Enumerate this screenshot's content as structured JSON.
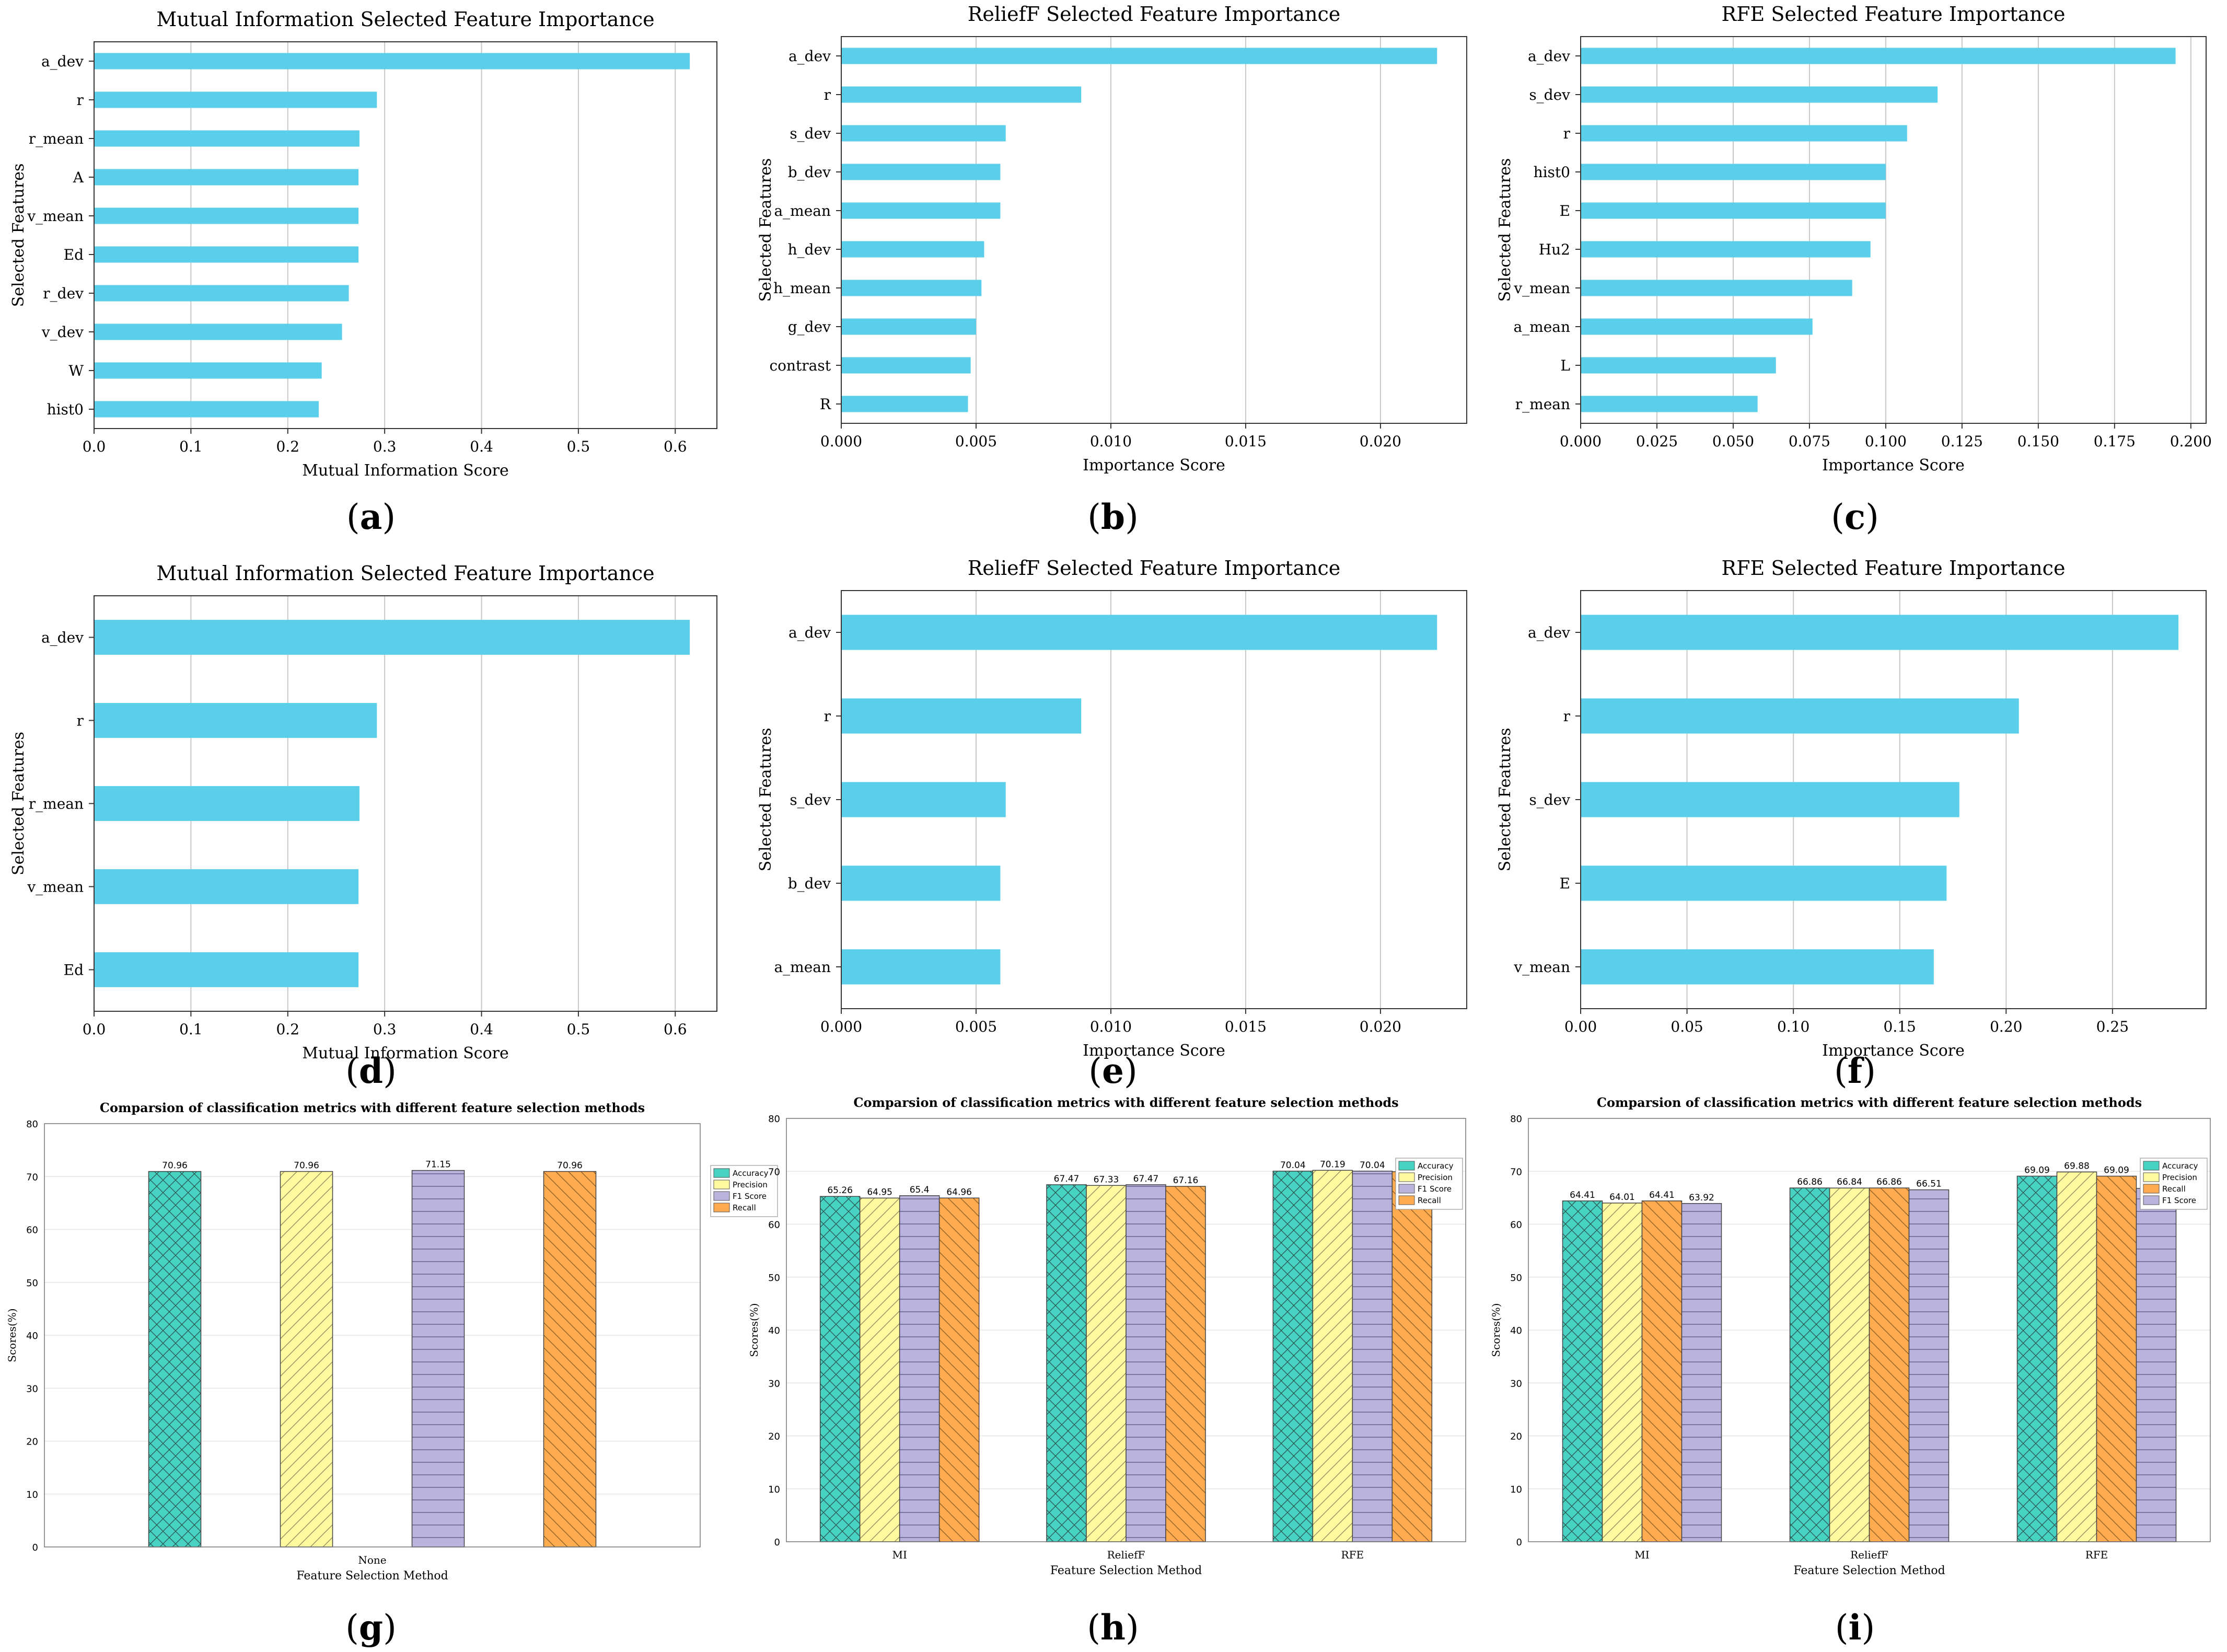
{
  "colors": {
    "bar": "#5bcfea",
    "grid": "#c8c8c8",
    "axis": "#333333",
    "accuracy": "#48d2c2",
    "precision": "#fffaa0",
    "f1": "#b9b3dd",
    "recall": "#ffac50"
  },
  "captions": [
    "a",
    "b",
    "c",
    "d",
    "e",
    "f",
    "g",
    "h",
    "i"
  ],
  "chart_data": [
    {
      "type": "bar",
      "orientation": "horizontal",
      "title": "Mutual Information Selected Feature Importance",
      "xlabel": "Mutual Information Score",
      "ylabel": "Selected Features",
      "categories": [
        "a_dev",
        "r",
        "r_mean",
        "A",
        "v_mean",
        "Ed",
        "r_dev",
        "v_dev",
        "W",
        "hist0"
      ],
      "values": [
        0.615,
        0.292,
        0.274,
        0.273,
        0.273,
        0.273,
        0.263,
        0.256,
        0.235,
        0.232
      ],
      "xlim": [
        0,
        0.643
      ],
      "xticks": [
        0.0,
        0.1,
        0.2,
        0.3,
        0.4,
        0.5,
        0.6
      ],
      "xtick_labels": [
        "0.0",
        "0.1",
        "0.2",
        "0.3",
        "0.4",
        "0.5",
        "0.6"
      ],
      "grid": "x"
    },
    {
      "type": "bar",
      "orientation": "horizontal",
      "title": "ReliefF Selected Feature Importance",
      "xlabel": "Importance Score",
      "ylabel": "Selected Features",
      "categories": [
        "a_dev",
        "r",
        "s_dev",
        "b_dev",
        "a_mean",
        "h_dev",
        "h_mean",
        "g_dev",
        "contrast",
        "R"
      ],
      "values": [
        0.0221,
        0.0089,
        0.0061,
        0.0059,
        0.0059,
        0.0053,
        0.0052,
        0.005,
        0.0048,
        0.0047
      ],
      "xlim": [
        0,
        0.0232
      ],
      "xticks": [
        0.0,
        0.005,
        0.01,
        0.015,
        0.02
      ],
      "xtick_labels": [
        "0.000",
        "0.005",
        "0.010",
        "0.015",
        "0.020"
      ],
      "grid": "x"
    },
    {
      "type": "bar",
      "orientation": "horizontal",
      "title": "RFE Selected Feature Importance",
      "xlabel": "Importance Score",
      "ylabel": "Selected Features",
      "categories": [
        "a_dev",
        "s_dev",
        "r",
        "hist0",
        "E",
        "Hu2",
        "v_mean",
        "a_mean",
        "L",
        "r_mean"
      ],
      "values": [
        0.195,
        0.117,
        0.107,
        0.1,
        0.1,
        0.095,
        0.089,
        0.076,
        0.064,
        0.058
      ],
      "xlim": [
        0,
        0.205
      ],
      "xticks": [
        0.0,
        0.025,
        0.05,
        0.075,
        0.1,
        0.125,
        0.15,
        0.175,
        0.2
      ],
      "xtick_labels": [
        "0.000",
        "0.025",
        "0.050",
        "0.075",
        "0.100",
        "0.125",
        "0.150",
        "0.175",
        "0.200"
      ],
      "grid": "x"
    },
    {
      "type": "bar",
      "orientation": "horizontal",
      "title": "Mutual Information Selected Feature Importance",
      "xlabel": "Mutual Information Score",
      "ylabel": "Selected Features",
      "categories": [
        "a_dev",
        "r",
        "r_mean",
        "v_mean",
        "Ed"
      ],
      "values": [
        0.615,
        0.292,
        0.274,
        0.273,
        0.273
      ],
      "xlim": [
        0,
        0.643
      ],
      "xticks": [
        0.0,
        0.1,
        0.2,
        0.3,
        0.4,
        0.5,
        0.6
      ],
      "xtick_labels": [
        "0.0",
        "0.1",
        "0.2",
        "0.3",
        "0.4",
        "0.5",
        "0.6"
      ],
      "grid": "x"
    },
    {
      "type": "bar",
      "orientation": "horizontal",
      "title": "ReliefF Selected Feature Importance",
      "xlabel": "Importance Score",
      "ylabel": "Selected Features",
      "categories": [
        "a_dev",
        "r",
        "s_dev",
        "b_dev",
        "a_mean"
      ],
      "values": [
        0.0221,
        0.0089,
        0.0061,
        0.0059,
        0.0059
      ],
      "xlim": [
        0,
        0.0232
      ],
      "xticks": [
        0.0,
        0.005,
        0.01,
        0.015,
        0.02
      ],
      "xtick_labels": [
        "0.000",
        "0.005",
        "0.010",
        "0.015",
        "0.020"
      ],
      "grid": "x"
    },
    {
      "type": "bar",
      "orientation": "horizontal",
      "title": "RFE Selected Feature Importance",
      "xlabel": "Importance Score",
      "ylabel": "Selected Features",
      "categories": [
        "a_dev",
        "r",
        "s_dev",
        "E",
        "v_mean"
      ],
      "values": [
        0.281,
        0.206,
        0.178,
        0.172,
        0.166
      ],
      "xlim": [
        0,
        0.294
      ],
      "xticks": [
        0.0,
        0.05,
        0.1,
        0.15,
        0.2,
        0.25
      ],
      "xtick_labels": [
        "0.00",
        "0.05",
        "0.10",
        "0.15",
        "0.20",
        "0.25"
      ],
      "grid": "x"
    },
    {
      "type": "bar",
      "orientation": "vertical",
      "title": "Comparsion of classification metrics with different feature selection methods",
      "xlabel": "Feature Selection Method",
      "ylabel": "Scores(%)",
      "categories": [
        "None"
      ],
      "series": [
        {
          "name": "Accuracy",
          "values": [
            70.96
          ]
        },
        {
          "name": "Precision",
          "values": [
            70.96
          ]
        },
        {
          "name": "F1 Score",
          "values": [
            71.15
          ]
        },
        {
          "name": "Recall",
          "values": [
            70.96
          ]
        }
      ],
      "ylim": [
        0,
        80
      ],
      "yticks": [
        0,
        10,
        20,
        30,
        40,
        50,
        60,
        70,
        80
      ],
      "legend": "right",
      "grid": "y"
    },
    {
      "type": "bar",
      "orientation": "vertical",
      "title": "Comparsion of classification metrics with different feature selection methods",
      "xlabel": "Feature Selection Method",
      "ylabel": "Scores(%)",
      "categories": [
        "MI",
        "ReliefF",
        "RFE"
      ],
      "series": [
        {
          "name": "Accuracy",
          "values": [
            65.26,
            67.47,
            70.04
          ]
        },
        {
          "name": "Precision",
          "values": [
            64.95,
            67.33,
            70.19
          ]
        },
        {
          "name": "F1 Score",
          "values": [
            65.4,
            67.47,
            70.04
          ]
        },
        {
          "name": "Recall",
          "values": [
            64.96,
            67.16,
            69.93
          ]
        }
      ],
      "ylim": [
        0,
        80
      ],
      "yticks": [
        0,
        10,
        20,
        30,
        40,
        50,
        60,
        70,
        80
      ],
      "legend": "top-right",
      "grid": "y"
    },
    {
      "type": "bar",
      "orientation": "vertical",
      "title": "Comparsion of classification metrics with different feature selection methods",
      "xlabel": "Feature Selection Method",
      "ylabel": "Scores(%)",
      "categories": [
        "MI",
        "ReliefF",
        "RFE"
      ],
      "series": [
        {
          "name": "Accuracy",
          "values": [
            64.41,
            66.86,
            69.09
          ]
        },
        {
          "name": "Precision",
          "values": [
            64.01,
            66.84,
            69.88
          ]
        },
        {
          "name": "Recall",
          "values": [
            64.41,
            66.86,
            69.09
          ]
        },
        {
          "name": "F1 Score",
          "values": [
            63.92,
            66.51,
            66.77
          ]
        }
      ],
      "ylim": [
        0,
        80
      ],
      "yticks": [
        0,
        10,
        20,
        30,
        40,
        50,
        60,
        70,
        80
      ],
      "legend": "top-right",
      "grid": "y"
    }
  ]
}
